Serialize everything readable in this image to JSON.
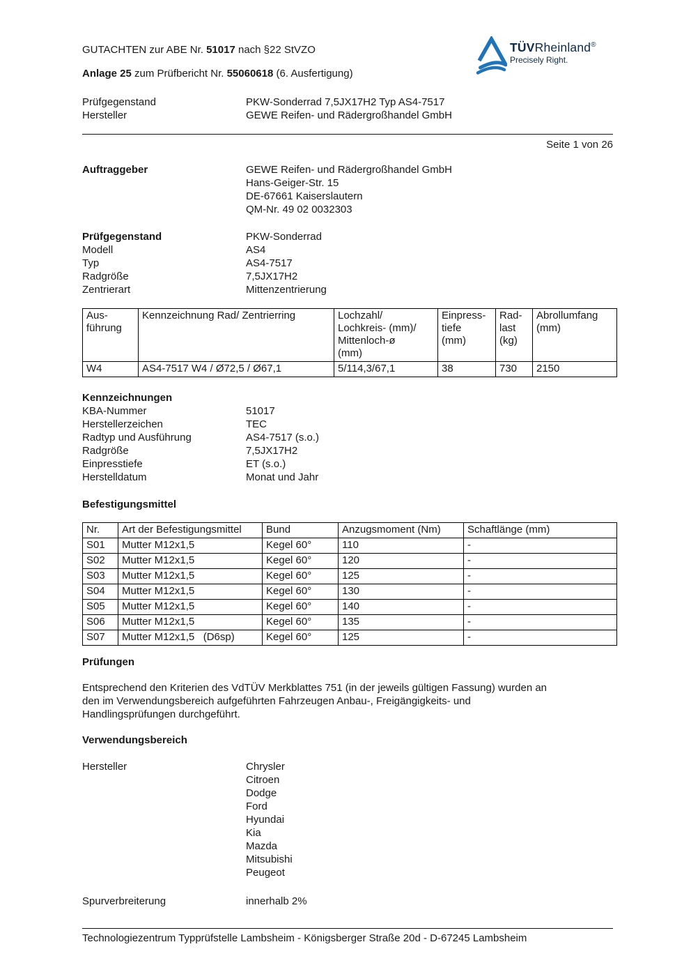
{
  "page": {
    "number_label": "Seite 1 von 26"
  },
  "header": {
    "title_prefix": "GUTACHTEN zur ABE Nr. ",
    "abe_number": "51017",
    "title_suffix": " nach §22 StVZO",
    "annex_bold": "Anlage 25",
    "annex_mid": " zum Prüfbericht Nr. ",
    "report_number": "55060618",
    "annex_suffix": " (6. Ausfertigung)",
    "subject_label": "Prüfgegenstand",
    "subject_value": "PKW-Sonderrad 7,5JX17H2 Typ AS4-7517",
    "manufacturer_label": "Hersteller",
    "manufacturer_value": "GEWE Reifen- und Rädergroßhandel GmbH"
  },
  "logo": {
    "tuv": "TÜV",
    "rheinland": "Rheinland",
    "registered": "®",
    "tagline": "Precisely Right.",
    "triangle_color": "#2173b8",
    "text_color": "#122a44"
  },
  "client": {
    "label": "Auftraggeber",
    "address": "GEWE Reifen- und Rädergroßhandel GmbH\nHans-Geiger-Str. 15\nDE-67661 Kaiserslautern\nQM-Nr. 49 02 0032303"
  },
  "test_object": {
    "label": "Prüfgegenstand",
    "value": "PKW-Sonderrad",
    "rows": [
      [
        "Modell",
        "AS4"
      ],
      [
        "Typ",
        "AS4-7517"
      ],
      [
        "Radgröße",
        "7,5JX17H2"
      ],
      [
        "Zentrierart",
        "Mittenzentrierung"
      ]
    ]
  },
  "wheel_table": {
    "headers": [
      "Aus-\nführung",
      "Kennzeichnung Rad/ Zentrierring",
      "Lochzahl/\nLochkreis- (mm)/\nMittenloch-ø\n(mm)",
      "Einpress-\ntiefe\n(mm)",
      "Rad-\nlast\n(kg)",
      "Abrollumfang\n(mm)"
    ],
    "rows": [
      [
        "W4",
        "AS4-7517 W4 / Ø72,5 / Ø67,1",
        "5/114,3/67,1",
        "38",
        "730",
        "2150"
      ]
    ]
  },
  "markings": {
    "heading": "Kennzeichnungen",
    "rows": [
      [
        "KBA-Nummer",
        "51017"
      ],
      [
        "Herstellerzeichen",
        "TEC"
      ],
      [
        "Radtyp und Ausführung",
        "AS4-7517 (s.o.)"
      ],
      [
        "Radgröße",
        "7,5JX17H2"
      ],
      [
        "Einpresstiefe",
        "ET (s.o.)"
      ],
      [
        "Herstelldatum",
        "Monat und Jahr"
      ]
    ]
  },
  "fasteners": {
    "heading": "Befestigungsmittel",
    "headers": [
      "Nr.",
      "Art der Befestigungsmittel",
      "Bund",
      "Anzugsmoment (Nm)",
      "Schaftlänge (mm)"
    ],
    "rows": [
      [
        "S01",
        "Mutter M12x1,5",
        "Kegel 60°",
        "110",
        "-"
      ],
      [
        "S02",
        "Mutter M12x1,5",
        "Kegel 60°",
        "120",
        "-"
      ],
      [
        "S03",
        "Mutter M12x1,5",
        "Kegel 60°",
        "125",
        "-"
      ],
      [
        "S04",
        "Mutter M12x1,5",
        "Kegel 60°",
        "130",
        "-"
      ],
      [
        "S05",
        "Mutter M12x1,5",
        "Kegel 60°",
        "140",
        "-"
      ],
      [
        "S06",
        "Mutter M12x1,5",
        "Kegel 60°",
        "135",
        "-"
      ],
      [
        "S07",
        "Mutter M12x1,5   (D6sp)",
        "Kegel 60°",
        "125",
        "-"
      ]
    ]
  },
  "tests": {
    "heading": "Prüfungen",
    "paragraph": "Entsprechend den Kriterien des VdTÜV Merkblattes 751 (in der jeweils gültigen Fassung) wurden an\nden im Verwendungsbereich aufgeführten Fahrzeugen Anbau-, Freigängigkeits- und\nHandlingsprüfungen durchgeführt."
  },
  "application": {
    "heading": "Verwendungsbereich",
    "manufacturer_label": "Hersteller",
    "manufacturers": [
      "Chrysler",
      "Citroen",
      "Dodge",
      "Ford",
      "Hyundai",
      "Kia",
      "Mazda",
      "Mitsubishi",
      "Peugeot"
    ],
    "track_label": "Spurverbreiterung",
    "track_value": "innerhalb 2%"
  },
  "footer": {
    "text": "Technologiezentrum Typprüfstelle Lambsheim - Königsberger Straße 20d - D-67245 Lambsheim"
  }
}
